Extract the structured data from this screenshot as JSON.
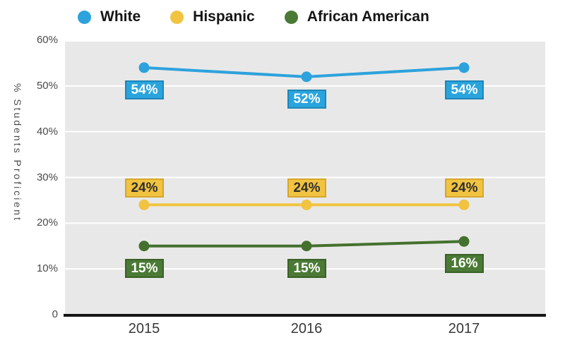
{
  "page": {
    "background": "#ffffff"
  },
  "legend": {
    "items": [
      {
        "label": "White",
        "color": "#2da2dc"
      },
      {
        "label": "Hispanic",
        "color": "#f1c340"
      },
      {
        "label": "African American",
        "color": "#4a7a35"
      }
    ]
  },
  "chart_data": {
    "type": "line",
    "categories": [
      "2015",
      "2016",
      "2017"
    ],
    "ylabel": "% Students Proficient",
    "ylim": [
      0,
      60
    ],
    "ytick_values": [
      0,
      10,
      20,
      30,
      40,
      50,
      60
    ],
    "ytick_labels": [
      "0",
      "10%",
      "20%",
      "30%",
      "40%",
      "50%",
      "60%"
    ],
    "grid": true,
    "grid_color": "#ffffff",
    "plot_background": "#e9e8e8",
    "axis_color": "#161616",
    "legend_position": "top",
    "series": [
      {
        "name": "White",
        "color": "#2da2dc",
        "values": [
          54,
          52,
          54
        ],
        "point_labels": [
          "54%",
          "52%",
          "54%"
        ],
        "label_position": "below",
        "label_bg": "#29a4dd",
        "label_border": "#1f86b8",
        "label_text_color": "#ffffff"
      },
      {
        "name": "Hispanic",
        "color": "#f1c340",
        "values": [
          24,
          24,
          24
        ],
        "point_labels": [
          "24%",
          "24%",
          "24%"
        ],
        "label_position": "above",
        "label_bg": "#f1c340",
        "label_border": "#d6a72c",
        "label_text_color": "#2f2f2f"
      },
      {
        "name": "African American",
        "color": "#44712e",
        "values": [
          15,
          15,
          16
        ],
        "point_labels": [
          "15%",
          "15%",
          "16%"
        ],
        "label_position": "below",
        "label_bg": "#4a7a35",
        "label_border": "#3a6127",
        "label_text_color": "#ffffff"
      }
    ]
  }
}
